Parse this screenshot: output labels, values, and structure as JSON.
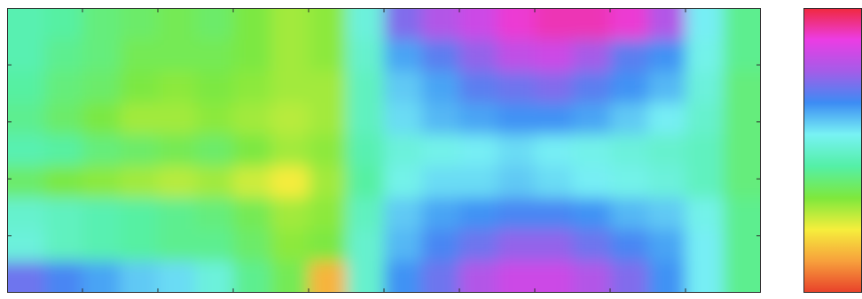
{
  "chart_data": {
    "type": "heatmap",
    "title": "",
    "xlabel": "",
    "ylabel": "",
    "colormap": [
      "#e8402a",
      "#f7a03c",
      "#f6ee3c",
      "#7ee83c",
      "#54f0a6",
      "#78f2f4",
      "#3c8cf4",
      "#a45ce8",
      "#ec3ce4",
      "#f0283c"
    ],
    "colorbar": {
      "orientation": "vertical",
      "low_color": "#e8402a",
      "high_color": "#f0283c"
    },
    "x_tick_count": 10,
    "y_tick_count": 5,
    "columns": 20,
    "rows": 9,
    "values": [
      [
        0.46,
        0.44,
        0.4,
        0.38,
        0.36,
        0.38,
        0.34,
        0.3,
        0.32,
        0.52,
        0.74,
        0.8,
        0.84,
        0.9,
        0.92,
        0.92,
        0.9,
        0.8,
        0.56,
        0.42
      ],
      [
        0.46,
        0.42,
        0.4,
        0.36,
        0.36,
        0.36,
        0.34,
        0.3,
        0.32,
        0.5,
        0.64,
        0.7,
        0.76,
        0.82,
        0.84,
        0.78,
        0.7,
        0.66,
        0.54,
        0.42
      ],
      [
        0.44,
        0.4,
        0.38,
        0.34,
        0.32,
        0.34,
        0.32,
        0.3,
        0.3,
        0.48,
        0.6,
        0.64,
        0.7,
        0.72,
        0.74,
        0.7,
        0.66,
        0.62,
        0.52,
        0.4
      ],
      [
        0.42,
        0.38,
        0.34,
        0.3,
        0.3,
        0.32,
        0.3,
        0.28,
        0.3,
        0.48,
        0.58,
        0.62,
        0.64,
        0.66,
        0.66,
        0.64,
        0.6,
        0.56,
        0.5,
        0.4
      ],
      [
        0.46,
        0.44,
        0.4,
        0.38,
        0.36,
        0.38,
        0.34,
        0.3,
        0.32,
        0.46,
        0.52,
        0.54,
        0.56,
        0.58,
        0.56,
        0.54,
        0.52,
        0.5,
        0.48,
        0.4
      ],
      [
        0.38,
        0.34,
        0.32,
        0.3,
        0.28,
        0.3,
        0.26,
        0.22,
        0.3,
        0.44,
        0.54,
        0.58,
        0.58,
        0.6,
        0.58,
        0.56,
        0.54,
        0.52,
        0.48,
        0.4
      ],
      [
        0.5,
        0.48,
        0.46,
        0.44,
        0.42,
        0.4,
        0.36,
        0.3,
        0.32,
        0.48,
        0.6,
        0.64,
        0.66,
        0.68,
        0.68,
        0.66,
        0.62,
        0.6,
        0.54,
        0.42
      ],
      [
        0.52,
        0.48,
        0.46,
        0.44,
        0.42,
        0.42,
        0.38,
        0.32,
        0.34,
        0.5,
        0.62,
        0.68,
        0.72,
        0.76,
        0.76,
        0.72,
        0.68,
        0.64,
        0.56,
        0.42
      ],
      [
        0.72,
        0.68,
        0.64,
        0.6,
        0.58,
        0.52,
        0.42,
        0.36,
        0.14,
        0.5,
        0.66,
        0.72,
        0.8,
        0.84,
        0.84,
        0.8,
        0.74,
        0.66,
        0.56,
        0.42
      ]
    ]
  }
}
